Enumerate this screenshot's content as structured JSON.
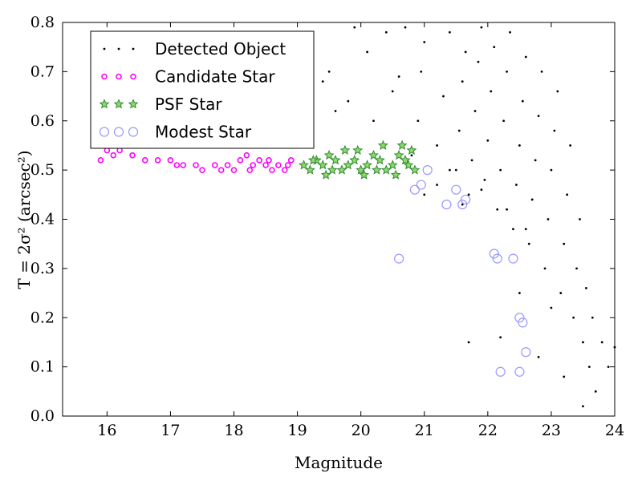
{
  "chart_data": {
    "type": "scatter",
    "xlabel": "Magnitude",
    "ylabel": "T = 2σ² (arcsec²)",
    "xlim": [
      15.3,
      24
    ],
    "ylim": [
      0.0,
      0.8
    ],
    "xticks": [
      "16",
      "17",
      "18",
      "19",
      "20",
      "21",
      "22",
      "23",
      "24"
    ],
    "yticks": [
      "0.0",
      "0.1",
      "0.2",
      "0.3",
      "0.4",
      "0.5",
      "0.6",
      "0.7",
      "0.8"
    ],
    "legend_position": "top-left",
    "grid": false,
    "series": [
      {
        "name": "Detected Object",
        "marker": "dot",
        "color": "#000000",
        "points": [
          [
            20.8,
            0.53
          ],
          [
            20.9,
            0.6
          ],
          [
            20.95,
            0.7
          ],
          [
            21.0,
            0.76
          ],
          [
            21.2,
            0.55
          ],
          [
            21.3,
            0.65
          ],
          [
            21.4,
            0.78
          ],
          [
            21.5,
            0.5
          ],
          [
            21.55,
            0.58
          ],
          [
            21.6,
            0.68
          ],
          [
            21.65,
            0.74
          ],
          [
            21.7,
            0.45
          ],
          [
            21.75,
            0.52
          ],
          [
            21.8,
            0.62
          ],
          [
            21.85,
            0.72
          ],
          [
            21.9,
            0.79
          ],
          [
            21.95,
            0.48
          ],
          [
            22.0,
            0.56
          ],
          [
            22.05,
            0.66
          ],
          [
            22.1,
            0.75
          ],
          [
            22.15,
            0.42
          ],
          [
            22.2,
            0.5
          ],
          [
            22.25,
            0.6
          ],
          [
            22.3,
            0.7
          ],
          [
            22.35,
            0.78
          ],
          [
            22.4,
            0.38
          ],
          [
            22.45,
            0.47
          ],
          [
            22.5,
            0.55
          ],
          [
            22.55,
            0.64
          ],
          [
            22.6,
            0.73
          ],
          [
            22.65,
            0.35
          ],
          [
            22.7,
            0.44
          ],
          [
            22.75,
            0.52
          ],
          [
            22.8,
            0.61
          ],
          [
            22.85,
            0.7
          ],
          [
            22.9,
            0.3
          ],
          [
            22.95,
            0.4
          ],
          [
            23.0,
            0.5
          ],
          [
            23.05,
            0.58
          ],
          [
            23.1,
            0.66
          ],
          [
            23.15,
            0.25
          ],
          [
            23.2,
            0.35
          ],
          [
            23.25,
            0.45
          ],
          [
            23.3,
            0.55
          ],
          [
            23.35,
            0.2
          ],
          [
            23.4,
            0.3
          ],
          [
            23.45,
            0.4
          ],
          [
            23.5,
            0.15
          ],
          [
            23.55,
            0.26
          ],
          [
            23.6,
            0.1
          ],
          [
            23.65,
            0.2
          ],
          [
            23.7,
            0.05
          ],
          [
            23.8,
            0.15
          ],
          [
            23.9,
            0.1
          ],
          [
            24.0,
            0.14
          ],
          [
            23.5,
            0.02
          ],
          [
            23.2,
            0.08
          ],
          [
            22.8,
            0.12
          ],
          [
            22.5,
            0.25
          ],
          [
            22.2,
            0.16
          ],
          [
            21.0,
            0.45
          ],
          [
            21.2,
            0.47
          ],
          [
            21.4,
            0.5
          ],
          [
            21.6,
            0.43
          ],
          [
            21.9,
            0.46
          ],
          [
            19.5,
            0.7
          ],
          [
            19.8,
            0.64
          ],
          [
            20.1,
            0.74
          ],
          [
            20.4,
            0.78
          ],
          [
            20.6,
            0.69
          ],
          [
            20.7,
            0.79
          ],
          [
            19.9,
            0.79
          ],
          [
            19.6,
            0.62
          ],
          [
            19.4,
            0.68
          ],
          [
            20.2,
            0.6
          ],
          [
            20.5,
            0.66
          ],
          [
            21.7,
            0.15
          ],
          [
            22.3,
            0.42
          ],
          [
            22.6,
            0.38
          ],
          [
            23.0,
            0.22
          ]
        ]
      },
      {
        "name": "Candidate Star",
        "marker": "circle",
        "color": "#ff00ff",
        "points": [
          [
            15.9,
            0.52
          ],
          [
            16.0,
            0.54
          ],
          [
            16.1,
            0.53
          ],
          [
            16.4,
            0.53
          ],
          [
            16.8,
            0.52
          ],
          [
            17.0,
            0.52
          ],
          [
            17.2,
            0.51
          ],
          [
            17.5,
            0.5
          ],
          [
            17.7,
            0.51
          ],
          [
            17.9,
            0.51
          ],
          [
            18.0,
            0.5
          ],
          [
            18.1,
            0.52
          ],
          [
            18.2,
            0.53
          ],
          [
            18.3,
            0.51
          ],
          [
            18.4,
            0.52
          ],
          [
            18.5,
            0.51
          ],
          [
            18.6,
            0.5
          ],
          [
            18.7,
            0.51
          ],
          [
            18.8,
            0.5
          ],
          [
            18.9,
            0.52
          ],
          [
            16.2,
            0.54
          ],
          [
            16.6,
            0.52
          ],
          [
            17.1,
            0.51
          ],
          [
            17.4,
            0.51
          ],
          [
            17.8,
            0.5
          ],
          [
            18.25,
            0.5
          ],
          [
            18.55,
            0.52
          ],
          [
            18.85,
            0.51
          ]
        ]
      },
      {
        "name": "PSF Star",
        "marker": "star",
        "color": "#2e8b2e",
        "points": [
          [
            19.1,
            0.51
          ],
          [
            19.2,
            0.5
          ],
          [
            19.3,
            0.52
          ],
          [
            19.4,
            0.51
          ],
          [
            19.5,
            0.53
          ],
          [
            19.6,
            0.52
          ],
          [
            19.7,
            0.5
          ],
          [
            19.8,
            0.51
          ],
          [
            19.9,
            0.52
          ],
          [
            20.0,
            0.5
          ],
          [
            20.1,
            0.51
          ],
          [
            20.2,
            0.53
          ],
          [
            20.3,
            0.52
          ],
          [
            20.4,
            0.5
          ],
          [
            20.5,
            0.51
          ],
          [
            20.6,
            0.53
          ],
          [
            20.7,
            0.52
          ],
          [
            20.8,
            0.54
          ],
          [
            20.85,
            0.5
          ],
          [
            19.45,
            0.49
          ],
          [
            19.75,
            0.54
          ],
          [
            20.05,
            0.49
          ],
          [
            20.35,
            0.55
          ],
          [
            20.65,
            0.55
          ],
          [
            19.25,
            0.52
          ],
          [
            19.55,
            0.5
          ],
          [
            19.95,
            0.54
          ],
          [
            20.25,
            0.5
          ],
          [
            20.55,
            0.49
          ],
          [
            20.75,
            0.51
          ]
        ]
      },
      {
        "name": "Modest Star",
        "marker": "ring",
        "color": "#9898ff",
        "points": [
          [
            20.6,
            0.32
          ],
          [
            20.85,
            0.46
          ],
          [
            20.95,
            0.47
          ],
          [
            21.05,
            0.5
          ],
          [
            21.35,
            0.43
          ],
          [
            21.5,
            0.46
          ],
          [
            21.6,
            0.43
          ],
          [
            21.65,
            0.44
          ],
          [
            22.1,
            0.33
          ],
          [
            22.15,
            0.32
          ],
          [
            22.4,
            0.32
          ],
          [
            22.5,
            0.2
          ],
          [
            22.55,
            0.19
          ],
          [
            22.6,
            0.13
          ],
          [
            22.2,
            0.09
          ],
          [
            22.5,
            0.09
          ]
        ]
      }
    ]
  }
}
